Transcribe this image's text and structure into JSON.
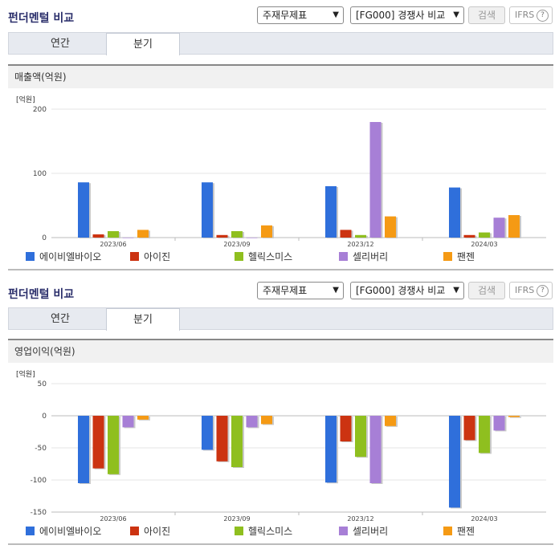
{
  "panels": [
    {
      "title": "펀더멘털 비교",
      "select_type": "주재무제표",
      "select_compare": "[FG000] 경쟁사 비교",
      "search_label": "검색",
      "ifrs_label": "IFRS",
      "ifrs_help": "?",
      "tabs": [
        {
          "label": "연간",
          "active": false
        },
        {
          "label": "분기",
          "active": true
        }
      ],
      "section_title": "매출액(억원)",
      "unit": "[억원]"
    },
    {
      "title": "펀더멘털 비교",
      "select_type": "주재무제표",
      "select_compare": "[FG000] 경쟁사 비교",
      "search_label": "검색",
      "ifrs_label": "IFRS",
      "ifrs_help": "?",
      "tabs": [
        {
          "label": "연간",
          "active": false
        },
        {
          "label": "분기",
          "active": true
        }
      ],
      "section_title": "영업이익(억원)",
      "unit": "[억원]"
    }
  ],
  "legend": [
    {
      "name": "에이비엘바이오",
      "color": "#2f6fdb"
    },
    {
      "name": "아이진",
      "color": "#cc3311"
    },
    {
      "name": "헬릭스미스",
      "color": "#8fbf1f"
    },
    {
      "name": "셀리버리",
      "color": "#a77fd6"
    },
    {
      "name": "팬젠",
      "color": "#f59a14"
    }
  ],
  "chart_data": [
    {
      "type": "bar",
      "title": "매출액(억원)",
      "ylabel": "[억원]",
      "categories": [
        "2023/06",
        "2023/09",
        "2023/12",
        "2024/03"
      ],
      "ylim": [
        0,
        200
      ],
      "yticks": [
        0,
        100,
        200
      ],
      "grid": true,
      "legend_position": "bottom",
      "series": [
        {
          "name": "에이비엘바이오",
          "color": "#2f6fdb",
          "values": [
            86,
            86,
            80,
            78
          ]
        },
        {
          "name": "아이진",
          "color": "#cc3311",
          "values": [
            5,
            4,
            12,
            4
          ]
        },
        {
          "name": "헬릭스미스",
          "color": "#8fbf1f",
          "values": [
            10,
            10,
            4,
            8
          ]
        },
        {
          "name": "셀리버리",
          "color": "#a77fd6",
          "values": [
            0,
            0,
            180,
            31
          ]
        },
        {
          "name": "팬젠",
          "color": "#f59a14",
          "values": [
            12,
            19,
            33,
            35
          ]
        }
      ]
    },
    {
      "type": "bar",
      "title": "영업이익(억원)",
      "ylabel": "[억원]",
      "categories": [
        "2023/06",
        "2023/09",
        "2023/12",
        "2024/03"
      ],
      "ylim": [
        -150,
        50
      ],
      "yticks": [
        50,
        0,
        -50,
        -100,
        -150
      ],
      "grid": true,
      "legend_position": "bottom",
      "series": [
        {
          "name": "에이비엘바이오",
          "color": "#2f6fdb",
          "values": [
            -105,
            -53,
            -104,
            -143
          ]
        },
        {
          "name": "아이진",
          "color": "#cc3311",
          "values": [
            -82,
            -71,
            -40,
            -38
          ]
        },
        {
          "name": "헬릭스미스",
          "color": "#8fbf1f",
          "values": [
            -91,
            -80,
            -64,
            -58
          ]
        },
        {
          "name": "셀리버리",
          "color": "#a77fd6",
          "values": [
            -18,
            -18,
            -105,
            -23
          ]
        },
        {
          "name": "팬젠",
          "color": "#f59a14",
          "values": [
            -6,
            -13,
            -16,
            -2
          ]
        }
      ]
    }
  ]
}
